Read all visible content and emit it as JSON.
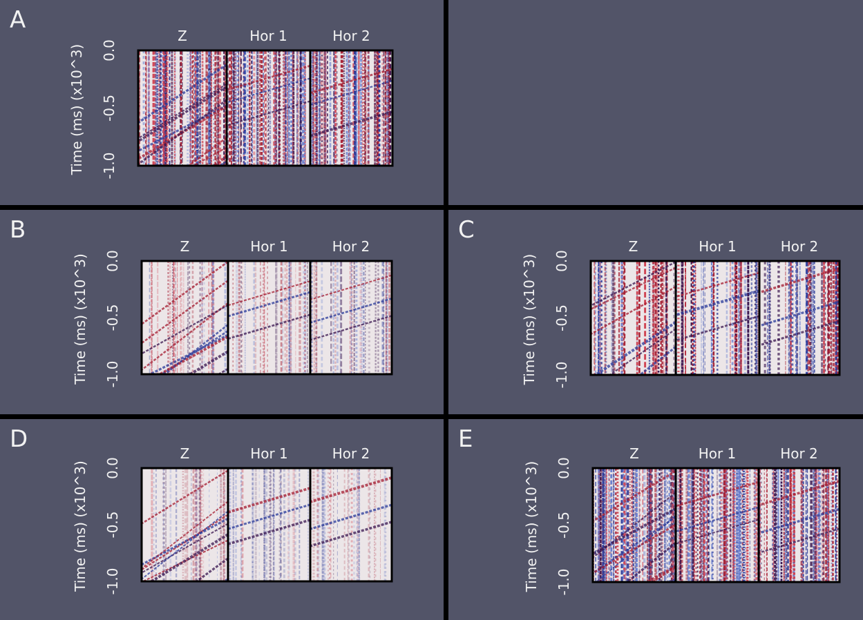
{
  "panels": [
    {
      "letter": "A",
      "y_axis_label": "Time (ms) (x10^3)",
      "y_ticks": [
        "0.0",
        "-0.5",
        "-1.0"
      ],
      "columns": [
        "Z",
        "Hor 1",
        "Hor 2"
      ]
    },
    {
      "letter": "B",
      "y_axis_label": "Time (ms) (x10^3)",
      "y_ticks": [
        "0.0",
        "-0.5",
        "-1.0"
      ],
      "columns": [
        "Z",
        "Hor 1",
        "Hor 2"
      ]
    },
    {
      "letter": "C",
      "y_axis_label": "Time (ms) (x10^3)",
      "y_ticks": [
        "0.0",
        "-0.5",
        "-1.0"
      ],
      "columns": [
        "Z",
        "Hor 1",
        "Hor 2"
      ]
    },
    {
      "letter": "D",
      "y_axis_label": "Time (ms) (x10^3)",
      "y_ticks": [
        "0.0",
        "-0.5",
        "-1.0"
      ],
      "columns": [
        "Z",
        "Hor 1",
        "Hor 2"
      ]
    },
    {
      "letter": "E",
      "y_axis_label": "Time (ms) (x10^3)",
      "y_ticks": [
        "0.0",
        "-0.5",
        "-1.0"
      ],
      "columns": [
        "Z",
        "Hor 1",
        "Hor 2"
      ]
    }
  ]
}
